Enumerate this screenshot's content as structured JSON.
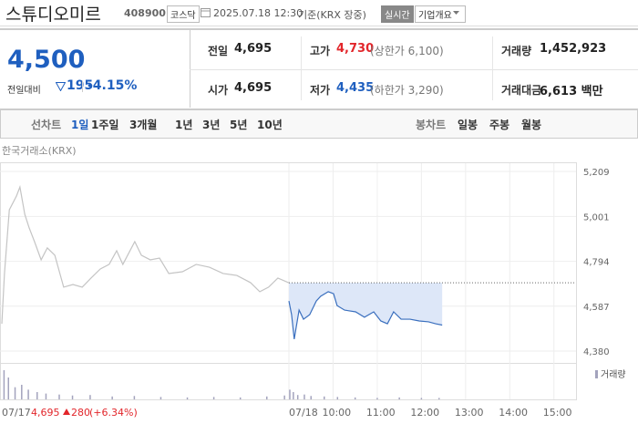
{
  "header": {
    "name": "스튜디오미르",
    "code": "408900",
    "market": "코스닥",
    "datetime": "2025.07.18 12:30",
    "basis": "기준(KRX 장중)",
    "realtime": "실시간",
    "company_info": "기업개요"
  },
  "quote": {
    "price": "4,500",
    "change_label": "전일대비",
    "change": "195",
    "change_rate": "-4.15%",
    "rows": [
      [
        {
          "label": "전일",
          "value": "4,695"
        },
        {
          "label": "고가",
          "value": "4,730",
          "note": "(상한가 6,100)"
        },
        {
          "label": "거래량",
          "value": "1,452,923"
        }
      ],
      [
        {
          "label": "시가",
          "value": "4,695"
        },
        {
          "label": "저가",
          "value": "4,435",
          "note": "(하한가 3,290)"
        },
        {
          "label": "거래대금",
          "value": "6,613 백만"
        }
      ]
    ]
  },
  "tabs": {
    "line_label": "선차트",
    "line_periods": [
      "1일",
      "1주일",
      "3개월",
      "1년",
      "3년",
      "5년",
      "10년"
    ],
    "candle_label": "봉차트",
    "candle_periods": [
      "일봉",
      "주봉",
      "월봉"
    ]
  },
  "chart_data": [
    {
      "type": "line",
      "source": "한국거래소(KRX)",
      "xlim": [
        0,
        13
      ],
      "ylim": [
        4380,
        5209
      ],
      "yticks": [
        {
          "value": 4380,
          "label": "4,380"
        },
        {
          "value": 4587,
          "label": "4,587"
        },
        {
          "value": 4794,
          "label": "4,794"
        },
        {
          "value": 5001,
          "label": "5,001"
        },
        {
          "value": 5209,
          "label": "5,209"
        }
      ],
      "xticks": [
        {
          "value": 6.5,
          "label": "07/18"
        },
        {
          "value": 7.5,
          "label": "10:00"
        },
        {
          "value": 8.5,
          "label": "11:00"
        },
        {
          "value": 9.5,
          "label": "12:00"
        },
        {
          "value": 10.5,
          "label": "13:00"
        },
        {
          "value": 11.5,
          "label": "14:00"
        },
        {
          "value": 12.5,
          "label": "15:00"
        }
      ],
      "baseline": 4695,
      "series": [
        {
          "color": "#c4c4c4",
          "x": [
            0,
            0.06,
            0.17,
            0.33,
            0.41,
            0.52,
            0.62,
            0.74,
            0.89,
            1.03,
            1.2,
            1.4,
            1.61,
            1.82,
            2.02,
            2.23,
            2.43,
            2.6,
            2.74,
            3.01,
            3.16,
            3.36,
            3.57,
            3.78,
            4.09,
            4.4,
            4.7,
            5.01,
            5.32,
            5.63,
            5.84,
            6.04,
            6.25,
            6.5
          ],
          "values": [
            4506,
            4738,
            5032,
            5095,
            5137,
            5011,
            4948,
            4885,
            4801,
            4856,
            4822,
            4675,
            4687,
            4675,
            4717,
            4759,
            4780,
            4843,
            4780,
            4885,
            4822,
            4801,
            4809,
            4738,
            4746,
            4780,
            4767,
            4738,
            4729,
            4696,
            4654,
            4675,
            4717,
            4695
          ]
        },
        {
          "color": "#3a6fbe",
          "x": [
            6.5,
            6.56,
            6.62,
            6.73,
            6.83,
            6.97,
            7.12,
            7.22,
            7.39,
            7.51,
            7.59,
            7.76,
            8.01,
            8.21,
            8.42,
            8.58,
            8.73,
            8.87,
            9.04,
            9.24,
            9.45,
            9.66,
            9.82,
            9.97
          ],
          "values": [
            4611,
            4548,
            4435,
            4569,
            4527,
            4548,
            4611,
            4633,
            4654,
            4645,
            4590,
            4569,
            4561,
            4536,
            4561,
            4519,
            4506,
            4561,
            4527,
            4527,
            4519,
            4515,
            4506,
            4500
          ]
        }
      ]
    },
    {
      "type": "bar",
      "legend": "거래량",
      "xlim": [
        0,
        13
      ],
      "series": [
        {
          "color": "#a3a3bd",
          "x": [
            0.05,
            0.15,
            0.3,
            0.45,
            0.6,
            0.8,
            1.0,
            1.3,
            1.6,
            2.0,
            2.5,
            3.0,
            3.6,
            4.2,
            4.8,
            5.4,
            6.0,
            6.4,
            6.52,
            6.6,
            6.7,
            6.85,
            7.0,
            7.3,
            7.6,
            8.0,
            8.5,
            9.0,
            9.5,
            9.9
          ],
          "values": [
            60000,
            45000,
            25000,
            30000,
            20000,
            15000,
            12000,
            10000,
            8000,
            9000,
            6000,
            7000,
            5000,
            4000,
            5000,
            4000,
            6000,
            8000,
            20000,
            15000,
            9000,
            10000,
            7000,
            6000,
            5000,
            4000,
            3000,
            4000,
            3000,
            3000
          ]
        }
      ]
    }
  ],
  "footer": {
    "date": "07/17",
    "price": "4,695",
    "change": "280",
    "change_rate": "(+6.34%)"
  }
}
